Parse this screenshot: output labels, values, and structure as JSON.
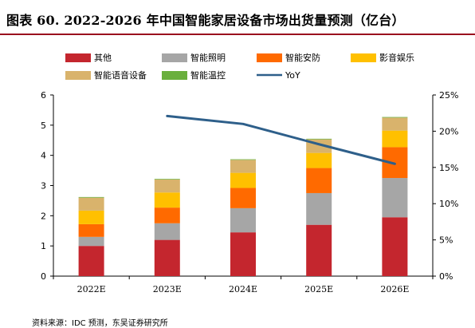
{
  "figure": {
    "title": "图表 60. 2022-2026 年中国智能家居设备市场出货量预测（亿台）",
    "source": "资料来源：IDC 预测，东吴证券研究所"
  },
  "chart_data": {
    "type": "bar",
    "stacked": true,
    "categories": [
      "2022E",
      "2023E",
      "2024E",
      "2025E",
      "2026E"
    ],
    "series": [
      {
        "name": "其他",
        "color": "#c4262e",
        "values": [
          1.0,
          1.2,
          1.45,
          1.7,
          1.95
        ]
      },
      {
        "name": "智能照明",
        "color": "#a6a6a6",
        "values": [
          0.3,
          0.55,
          0.8,
          1.05,
          1.3
        ]
      },
      {
        "name": "智能安防",
        "color": "#ff6a00",
        "values": [
          0.42,
          0.52,
          0.67,
          0.83,
          1.02
        ]
      },
      {
        "name": "影音娱乐",
        "color": "#ffc000",
        "values": [
          0.45,
          0.5,
          0.5,
          0.5,
          0.55
        ]
      },
      {
        "name": "智能语音设备",
        "color": "#d9b36c",
        "values": [
          0.43,
          0.43,
          0.43,
          0.45,
          0.43
        ]
      },
      {
        "name": "智能温控",
        "color": "#6aaf3d",
        "values": [
          0.02,
          0.02,
          0.02,
          0.02,
          0.02
        ]
      }
    ],
    "line": {
      "name": "YoY",
      "color": "#2e5f8a",
      "axis": "right",
      "x": [
        "2023E",
        "2024E",
        "2025E",
        "2026E"
      ],
      "values": [
        0.221,
        0.21,
        0.182,
        0.155
      ]
    },
    "ylim": [
      0,
      6
    ],
    "yticks": [
      0,
      1,
      2,
      3,
      4,
      5,
      6
    ],
    "y2lim": [
      0,
      0.25
    ],
    "y2ticks": [
      "0%",
      "5%",
      "10%",
      "15%",
      "20%",
      "25%"
    ],
    "legend_position": "top",
    "grid": false
  }
}
